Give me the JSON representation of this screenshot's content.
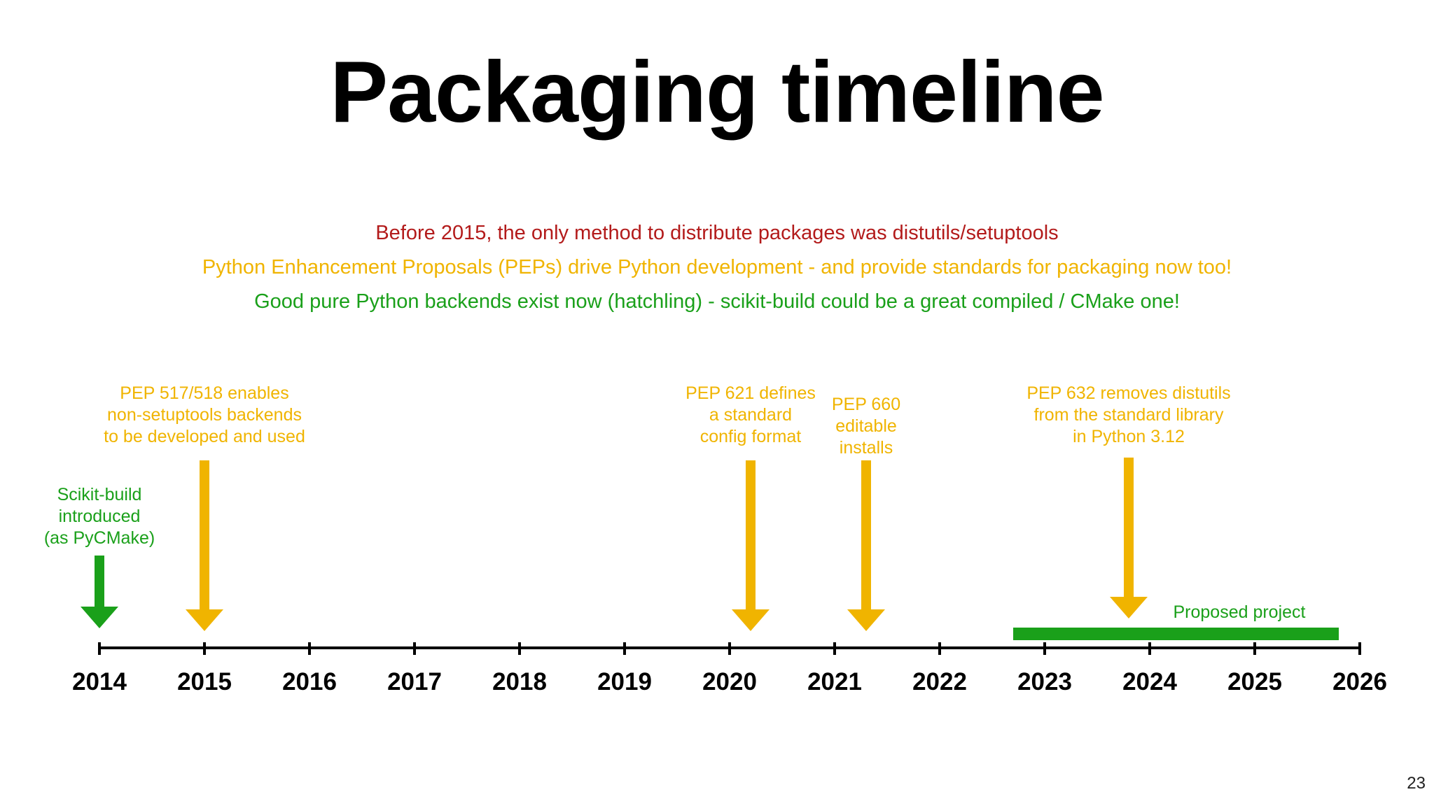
{
  "slide": {
    "title": "Packaging timeline",
    "page_number": "23"
  },
  "notes": [
    {
      "text": "Before 2015, the only method to distribute packages was distutils/setuptools",
      "color": "#b31b1b"
    },
    {
      "text": "Python Enhancement Proposals (PEPs) drive Python development - and provide standards for packaging now too!",
      "color": "#f0b400"
    },
    {
      "text": "Good pure Python backends exist now (hatchling) - scikit-build could be a great compiled / CMake one!",
      "color": "#1aa01a"
    }
  ],
  "timeline": {
    "years": [
      "2014",
      "2015",
      "2016",
      "2017",
      "2018",
      "2019",
      "2020",
      "2021",
      "2022",
      "2023",
      "2024",
      "2025",
      "2026"
    ],
    "events": [
      {
        "id": "scikit-build",
        "year": 2014.0,
        "color": "#1aa01a",
        "lines": [
          "Scikit-build",
          "introduced",
          "(as PyCMake)"
        ]
      },
      {
        "id": "pep-517-518",
        "year": 2015.0,
        "color": "#f0b400",
        "lines": [
          "PEP 517/518 enables",
          "non-setuptools backends",
          "to be developed and used"
        ]
      },
      {
        "id": "pep-621",
        "year": 2020.2,
        "color": "#f0b400",
        "lines": [
          "PEP 621 defines",
          "a standard",
          "config format"
        ]
      },
      {
        "id": "pep-660",
        "year": 2021.3,
        "color": "#f0b400",
        "lines": [
          "PEP 660",
          "editable",
          "installs"
        ]
      },
      {
        "id": "pep-632",
        "year": 2023.8,
        "color": "#f0b400",
        "lines": [
          "PEP 632 removes distutils",
          "from the standard library",
          "in Python 3.12"
        ]
      }
    ],
    "range_bar": {
      "label": "Proposed project",
      "start": 2022.7,
      "end": 2025.8,
      "color": "#1aa01a"
    }
  }
}
